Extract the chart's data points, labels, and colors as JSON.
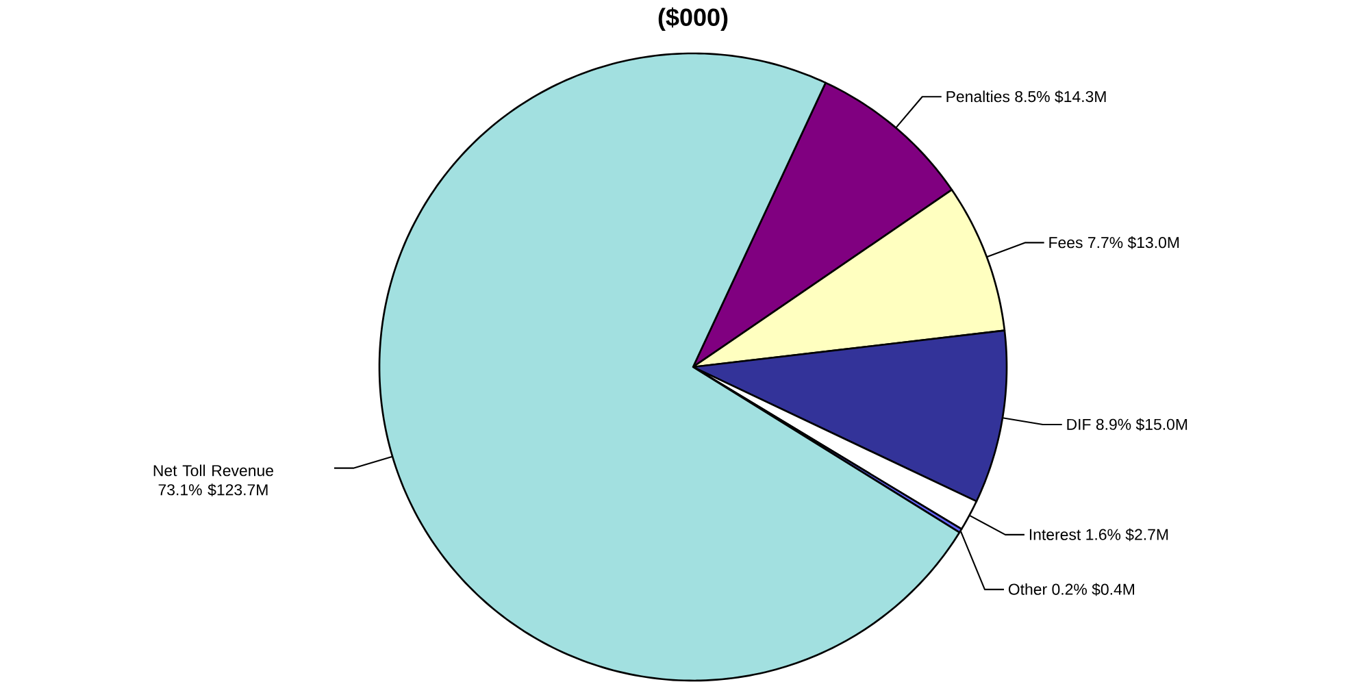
{
  "chart_data": {
    "type": "pie",
    "title": "($000)",
    "categories": [
      "Penalties",
      "Fees",
      "DIF",
      "Interest",
      "Other",
      "Net Toll Revenue"
    ],
    "values": [
      8.5,
      7.7,
      8.9,
      1.6,
      0.2,
      73.1
    ],
    "value_labels": [
      "8.5% $14.3M",
      "7.7% $13.0M",
      "8.9% $15.0M",
      "1.6% $2.7M",
      "0.2% $0.4M",
      "73.1% $123.7M"
    ],
    "colors": [
      "#800080",
      "#ffffc0",
      "#333399",
      "#ffffff",
      "#6666ff",
      "#a2e0e0"
    ]
  }
}
